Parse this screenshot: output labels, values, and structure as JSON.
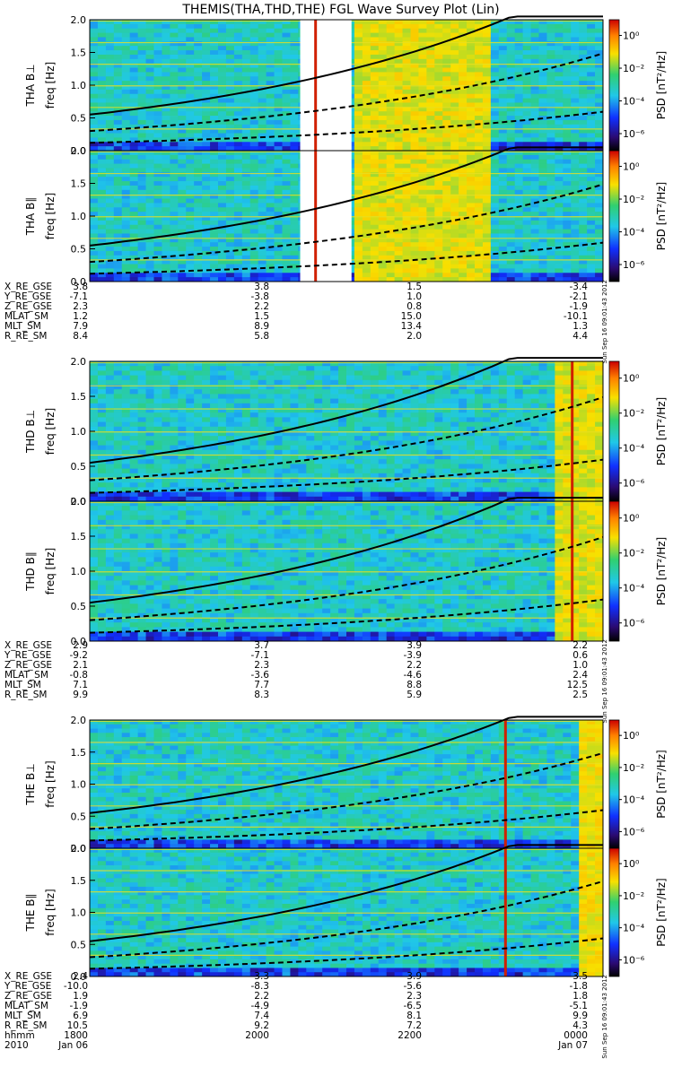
{
  "title": "THEMIS(THA,THD,THE) FGL Wave Survey Plot (Lin)",
  "freq_label": "freq [Hz]",
  "psd_label": "PSD [nT²/Hz]",
  "colorbar_ticks": [
    "10⁰",
    "10⁻²",
    "10⁻⁴",
    "10⁻⁶"
  ],
  "timestamp": "Sun Sep 16 09:01:43 2012",
  "chart_data": {
    "type": "heatmap",
    "colorscale": "rainbow",
    "colors": {
      "low": "#000000",
      "blue": "#1030ff",
      "cyan": "#20c8e8",
      "green": "#30d070",
      "yellow": "#f8e000",
      "orange": "#ff8000",
      "high": "#cc0000"
    },
    "ylim": [
      0,
      2.0
    ],
    "yticks": [
      "0.0",
      "0.5",
      "1.0",
      "1.5",
      "2.0"
    ],
    "colorbar_range_log10": [
      -7,
      1
    ],
    "x_range": [
      "1800",
      "0000"
    ],
    "probes": [
      {
        "name": "THA",
        "panels": [
          {
            "label": "THA B⊥",
            "component": "perp"
          },
          {
            "label": "THA B∥",
            "component": "par"
          }
        ],
        "gap": [
          0.41,
          0.51
        ],
        "orbit": {
          "times": [
            "1800",
            "2000",
            "2200",
            "0000"
          ],
          "X_RE_GSE": [
            "3.8",
            "3.8",
            "1.5",
            "-3.4"
          ],
          "Y_RE_GSE": [
            "-7.1",
            "-3.8",
            "1.0",
            "-2.1"
          ],
          "Z_RE_GSE": [
            "2.3",
            "2.2",
            "0.8",
            "-1.9"
          ],
          "MLAT_SM": [
            "1.2",
            "1.5",
            "15.0",
            "-10.1"
          ],
          "MLT_SM": [
            "7.9",
            "8.9",
            "13.4",
            "1.3"
          ],
          "R_RE_SM": [
            "8.4",
            "5.8",
            "2.0",
            "4.4"
          ]
        }
      },
      {
        "name": "THD",
        "panels": [
          {
            "label": "THD B⊥",
            "component": "perp"
          },
          {
            "label": "THD B∥",
            "component": "par"
          }
        ],
        "orbit": {
          "times": [
            "1800",
            "2000",
            "2200",
            "0000"
          ],
          "X_RE_GSE": [
            "2.9",
            "3.7",
            "3.9",
            "2.2"
          ],
          "Y_RE_GSE": [
            "-9.2",
            "-7.1",
            "-3.9",
            "0.6"
          ],
          "Z_RE_GSE": [
            "2.1",
            "2.3",
            "2.2",
            "1.0"
          ],
          "MLAT_SM": [
            "-0.8",
            "-3.6",
            "-4.6",
            "2.4"
          ],
          "MLT_SM": [
            "7.1",
            "7.7",
            "8.8",
            "12.5"
          ],
          "R_RE_SM": [
            "9.9",
            "8.3",
            "5.9",
            "2.5"
          ]
        }
      },
      {
        "name": "THE",
        "panels": [
          {
            "label": "THE B⊥",
            "component": "perp"
          },
          {
            "label": "THE B∥",
            "component": "par"
          }
        ],
        "orbit": {
          "times": [
            "1800",
            "2000",
            "2200",
            "0000"
          ],
          "X_RE_GSE": [
            "2.4",
            "3.3",
            "3.9",
            "3.5"
          ],
          "Y_RE_GSE": [
            "-10.0",
            "-8.3",
            "-5.6",
            "-1.8"
          ],
          "Z_RE_GSE": [
            "1.9",
            "2.2",
            "2.3",
            "1.8"
          ],
          "MLAT_SM": [
            "-1.9",
            "-4.9",
            "-6.5",
            "-5.1"
          ],
          "MLT_SM": [
            "6.9",
            "7.4",
            "8.1",
            "9.9"
          ],
          "R_RE_SM": [
            "10.5",
            "9.2",
            "7.2",
            "4.3"
          ],
          "hhmm": [
            "1800",
            "2000",
            "2200",
            "0000"
          ],
          "date_row": {
            "year": "2010",
            "start": "Jan 06",
            "end": "Jan 07"
          }
        }
      }
    ]
  }
}
